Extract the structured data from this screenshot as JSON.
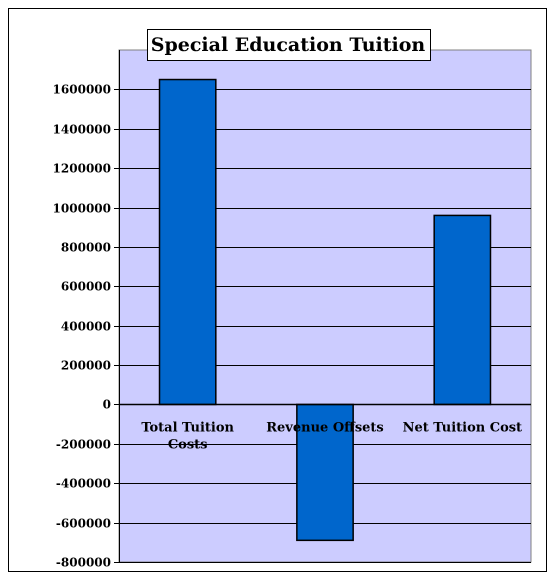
{
  "chart_data": {
    "type": "bar",
    "title": "Special Education Tuition",
    "categories": [
      "Total Tuition Costs",
      "Revenue Offsets",
      "Net Tuition Cost"
    ],
    "category_label_lines": [
      [
        "Total Tuition",
        "Costs"
      ],
      [
        "Revenue Offsets"
      ],
      [
        "Net Tuition Cost"
      ]
    ],
    "values": [
      1650000,
      -690000,
      960000
    ],
    "ylim": [
      -800000,
      1800000
    ],
    "yticks": [
      1600000,
      1400000,
      1200000,
      1000000,
      800000,
      600000,
      400000,
      200000,
      0,
      -200000,
      -400000,
      -600000,
      -800000
    ],
    "ytick_labels": [
      "1600000",
      "1400000",
      "1200000",
      "1000000",
      "800000",
      "600000",
      "400000",
      "200000",
      "0",
      "-200000",
      "-400000",
      "-600000",
      "-800000"
    ],
    "xlabel": "",
    "ylabel": "",
    "grid": true,
    "legend": false,
    "colors": {
      "plot_background": "#ccccff",
      "bar_fill": "#0066cc",
      "bar_stroke": "#000000",
      "gridline": "#000000"
    }
  }
}
